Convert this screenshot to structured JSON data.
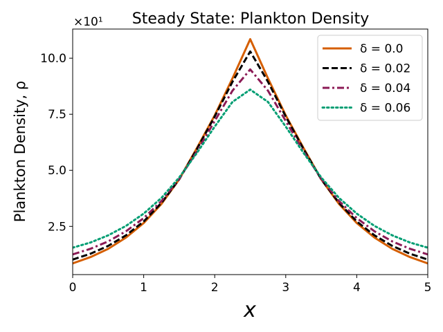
{
  "chart_data": {
    "type": "line",
    "title": "Steady State: Plankton Density",
    "xlabel": "x",
    "ylabel": "Plankton Density, ρ",
    "y_offset_label": "×10¹",
    "xlim": [
      0,
      5
    ],
    "ylim": [
      0.35,
      11.3
    ],
    "xticks": [
      0,
      1,
      2,
      3,
      4,
      5
    ],
    "xtick_labels": [
      "0",
      "1",
      "2",
      "3",
      "4",
      "5"
    ],
    "yticks": [
      2.5,
      5.0,
      7.5,
      10.0
    ],
    "ytick_labels": [
      "2.5",
      "5.0",
      "7.5",
      "10.0"
    ],
    "grid": false,
    "legend_position": "top-right",
    "x": [
      0,
      0.25,
      0.5,
      0.75,
      1.0,
      1.25,
      1.5,
      1.75,
      2.0,
      2.25,
      2.5,
      2.75,
      3.0,
      3.25,
      3.5,
      3.75,
      4.0,
      4.25,
      4.5,
      4.75,
      5.0
    ],
    "series": [
      {
        "name": "δ = 0.0",
        "color": "#d55e00",
        "dash": "solid",
        "values": [
          0.85,
          1.13,
          1.5,
          2.0,
          2.65,
          3.5,
          4.6,
          6.0,
          7.45,
          9.1,
          10.85,
          9.1,
          7.45,
          6.0,
          4.6,
          3.5,
          2.65,
          2.0,
          1.5,
          1.13,
          0.85
        ]
      },
      {
        "name": "δ = 0.02",
        "color": "#000000",
        "dash": "dashed",
        "values": [
          1.02,
          1.28,
          1.63,
          2.1,
          2.72,
          3.55,
          4.6,
          5.95,
          7.4,
          8.95,
          10.3,
          8.95,
          7.4,
          5.95,
          4.6,
          3.55,
          2.72,
          2.1,
          1.63,
          1.28,
          1.02
        ]
      },
      {
        "name": "δ = 0.04",
        "color": "#8b1a55",
        "dash": "dashdot",
        "values": [
          1.25,
          1.5,
          1.83,
          2.28,
          2.87,
          3.63,
          4.62,
          5.85,
          7.2,
          8.55,
          9.5,
          8.55,
          7.2,
          5.85,
          4.62,
          3.63,
          2.87,
          2.28,
          1.83,
          1.5,
          1.25
        ]
      },
      {
        "name": "δ = 0.06",
        "color": "#009e73",
        "dash": "dotted",
        "values": [
          1.55,
          1.78,
          2.1,
          2.52,
          3.07,
          3.77,
          4.68,
          5.78,
          6.95,
          8.05,
          8.6,
          8.05,
          6.95,
          5.78,
          4.68,
          3.77,
          3.07,
          2.52,
          2.1,
          1.78,
          1.55
        ]
      }
    ]
  }
}
